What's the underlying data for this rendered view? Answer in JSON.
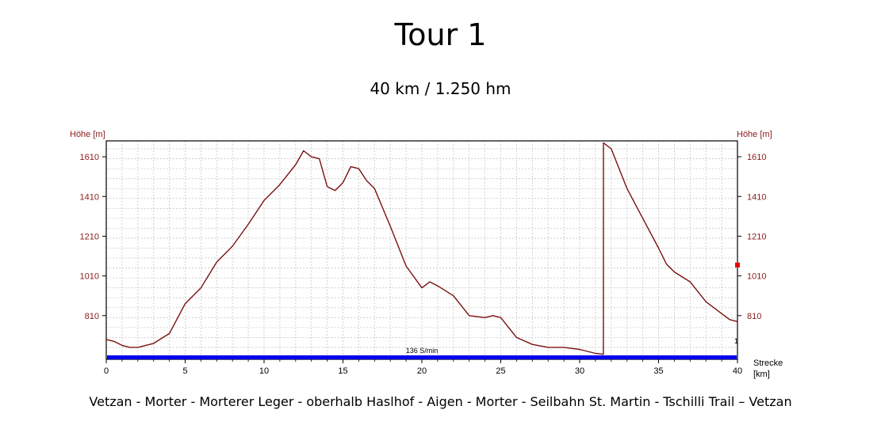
{
  "title": "Tour 1",
  "subtitle": "40 km / 1.250 hm",
  "route": "Vetzan - Morter - Morterer Leger - oberhalb Haslhof - Aigen - Morter - Seilbahn St. Martin - Tschilli Trail – Vetzan",
  "colors": {
    "profile": "#7a1010",
    "axis_text": "#8b1a1a",
    "speed_bar": "#0000ee",
    "marker": "#ee0000"
  },
  "chart_data": {
    "type": "line",
    "ylabel_left": "Höhe [m]",
    "ylabel_right": "Höhe [m]",
    "xlabel_line1": "Strecke",
    "xlabel_line2": "[km]",
    "xlim": [
      0,
      40
    ],
    "ylim": [
      590,
      1690
    ],
    "y_ticks": [
      810,
      1010,
      1210,
      1410,
      1610
    ],
    "x_ticks": [
      0,
      5,
      10,
      15,
      20,
      25,
      30,
      35,
      40
    ],
    "grid": true,
    "speed_label": "136 S/min",
    "right_axis_extra_tick": "1",
    "right_marker_y": 1065,
    "series": [
      {
        "x": [
          0,
          0.5,
          1,
          1.5,
          2,
          3,
          4,
          5,
          6,
          7,
          8,
          9,
          10,
          11,
          12,
          12.5,
          13,
          13.5,
          14,
          14.5,
          15,
          15.5,
          16,
          16.5,
          17,
          18,
          19,
          20,
          20.5,
          21,
          22,
          23,
          24,
          24.5,
          25,
          26,
          27,
          28,
          29,
          30,
          31,
          31.5,
          31.51,
          32,
          33,
          34,
          35,
          35.5,
          36,
          37,
          38,
          39,
          39.5,
          40
        ],
        "y": [
          690,
          680,
          660,
          650,
          650,
          670,
          720,
          870,
          950,
          1080,
          1160,
          1270,
          1390,
          1470,
          1570,
          1640,
          1610,
          1600,
          1460,
          1440,
          1480,
          1560,
          1550,
          1490,
          1450,
          1260,
          1060,
          950,
          980,
          960,
          910,
          810,
          800,
          810,
          800,
          700,
          665,
          650,
          650,
          640,
          620,
          615,
          1680,
          1650,
          1450,
          1300,
          1150,
          1070,
          1030,
          980,
          880,
          820,
          790,
          780
        ]
      }
    ]
  }
}
